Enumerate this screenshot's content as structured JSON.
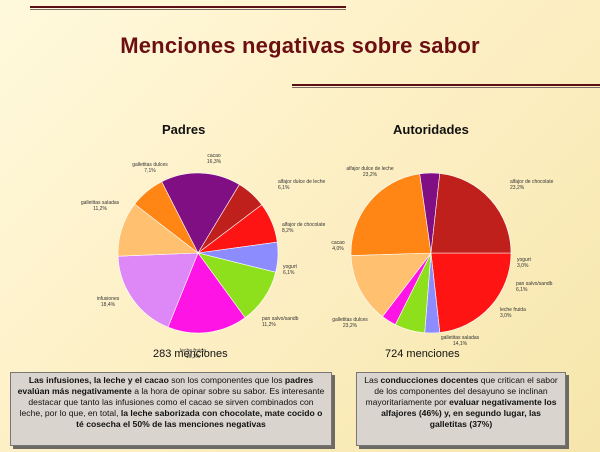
{
  "slide": {
    "title": "Menciones negativas sobre sabor",
    "note_left": {
      "p1": "Las infusiones, la leche y el cacao",
      "p2": " son los componentes que los ",
      "p3": "padres evalúan más negativamente",
      "p4": " a la hora de opinar sobre su sabor. Es interesante destacar que tanto las infusiones como el cacao se sirven combinados con leche, por lo que, en total, ",
      "p5": "la leche saborizada con chocolate, mate cocido o té cosecha el 50% de las menciones negativas"
    },
    "note_right": {
      "p1": "Las ",
      "p2": "conducciones docentes",
      "p3": " que critican el sabor de los componentes del desayuno se inclinan mayoritariamente por ",
      "p4": "evaluar negativamente los alfajores (46%) y, en segundo lugar, las galletitas (37%)"
    }
  },
  "chart_data": [
    {
      "type": "pie",
      "title": "Padres",
      "footer": "283 menciones",
      "slices": [
        {
          "label": "cacao",
          "value": 16.3,
          "pct": "16,3%",
          "color": "#7f0f82"
        },
        {
          "label": "alfajor dulce de leche",
          "value": 6.1,
          "pct": "6,1%",
          "color": "#c0201b"
        },
        {
          "label": "alfajor de chocolate",
          "value": 8.2,
          "pct": "8,2%",
          "color": "#ff1414"
        },
        {
          "label": "yogurt",
          "value": 6.1,
          "pct": "6,1%",
          "color": "#8c8cff"
        },
        {
          "label": "pan salvo/sandb",
          "value": 11.2,
          "pct": "11,2%",
          "color": "#8fe01c"
        },
        {
          "label": "leche fruida",
          "value": 16.3,
          "pct": "16,3%",
          "color": "#ff14e6"
        },
        {
          "label": "infusiones",
          "value": 18.4,
          "pct": "18,4%",
          "color": "#dd88f6"
        },
        {
          "label": "galletitas saladas",
          "value": 11.2,
          "pct": "11,2%",
          "color": "#ffc070"
        },
        {
          "label": "galletitas dulces",
          "value": 7.1,
          "pct": "7,1%",
          "color": "#ff8614"
        }
      ]
    },
    {
      "type": "pie",
      "title": "Autoridades",
      "footer": "724 menciones",
      "slices": [
        {
          "label": "alfajor de chocolate",
          "value": 23.2,
          "pct": "23,2%",
          "color": "#ff1414"
        },
        {
          "label": "yogurt",
          "value": 3.0,
          "pct": "3,0%",
          "color": "#8c8cff"
        },
        {
          "label": "pan salvo/sandb",
          "value": 6.1,
          "pct": "6,1%",
          "color": "#8fe01c"
        },
        {
          "label": "leche fruida",
          "value": 3.0,
          "pct": "3,0%",
          "color": "#ff14e6"
        },
        {
          "label": "galletitas saladas",
          "value": 14.1,
          "pct": "14,1%",
          "color": "#ffc070"
        },
        {
          "label": "galletitas dulces",
          "value": 23.2,
          "pct": "23,2%",
          "color": "#ff8614"
        },
        {
          "label": "cacao",
          "value": 4.0,
          "pct": "4,0%",
          "color": "#7f0f82"
        },
        {
          "label": "alfajor dulce de leche",
          "value": 23.2,
          "pct": "23,2%",
          "color": "#c0201b"
        }
      ]
    }
  ]
}
